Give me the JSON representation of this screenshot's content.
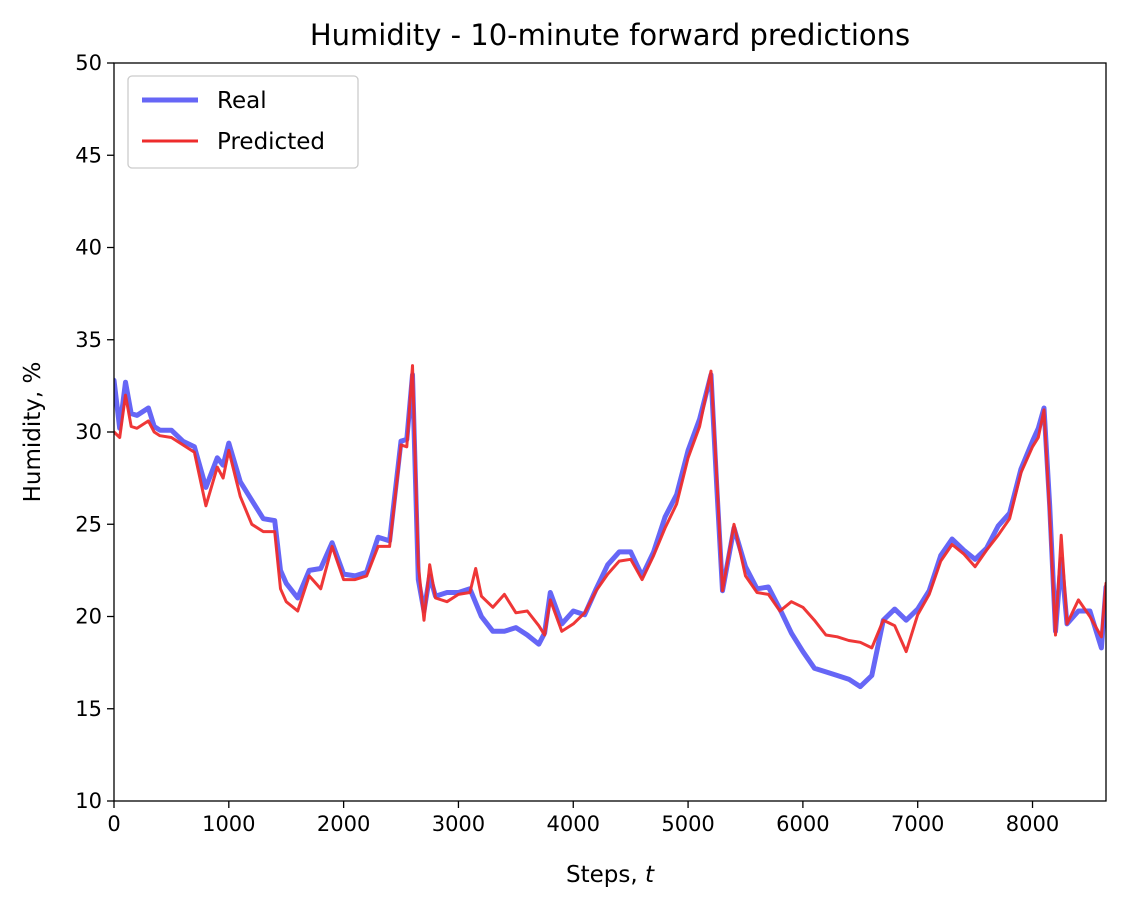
{
  "chart_data": {
    "type": "line",
    "title": "Humidity - 10-minute forward predictions",
    "xlabel": "Steps, ",
    "xlabel_var": "t",
    "ylabel": "Humidity, %",
    "xlim": [
      0,
      8640
    ],
    "ylim": [
      10,
      50
    ],
    "xticks": [
      0,
      1000,
      2000,
      3000,
      4000,
      5000,
      6000,
      7000,
      8000
    ],
    "yticks": [
      10,
      15,
      20,
      25,
      30,
      35,
      40,
      45,
      50
    ],
    "grid": false,
    "legend_position": "top-left",
    "series": [
      {
        "name": "Real",
        "color": "#6666f6",
        "x": [
          0,
          50,
          100,
          150,
          200,
          300,
          350,
          400,
          500,
          600,
          700,
          800,
          900,
          950,
          1000,
          1100,
          1200,
          1300,
          1400,
          1450,
          1500,
          1600,
          1700,
          1800,
          1900,
          2000,
          2100,
          2200,
          2300,
          2400,
          2500,
          2550,
          2600,
          2650,
          2700,
          2750,
          2800,
          2900,
          3000,
          3100,
          3200,
          3300,
          3400,
          3500,
          3600,
          3700,
          3750,
          3800,
          3900,
          4000,
          4100,
          4200,
          4300,
          4400,
          4500,
          4600,
          4700,
          4800,
          4900,
          5000,
          5100,
          5200,
          5250,
          5300,
          5400,
          5500,
          5600,
          5700,
          5800,
          5900,
          6000,
          6100,
          6200,
          6300,
          6400,
          6500,
          6600,
          6700,
          6800,
          6900,
          7000,
          7100,
          7200,
          7300,
          7400,
          7500,
          7600,
          7700,
          7800,
          7900,
          8000,
          8050,
          8100,
          8150,
          8200,
          8250,
          8300,
          8400,
          8500,
          8600,
          8640
        ],
        "values": [
          32.8,
          30.2,
          32.7,
          31.0,
          30.9,
          31.3,
          30.3,
          30.1,
          30.1,
          29.5,
          29.2,
          27.0,
          28.6,
          28.2,
          29.4,
          27.3,
          26.3,
          25.3,
          25.2,
          22.5,
          21.8,
          21.0,
          22.5,
          22.6,
          24.0,
          22.3,
          22.2,
          22.4,
          24.3,
          24.1,
          29.5,
          29.6,
          33.1,
          22.0,
          20.3,
          22.2,
          21.1,
          21.3,
          21.3,
          21.5,
          20.0,
          19.2,
          19.2,
          19.4,
          19.0,
          18.5,
          19.1,
          21.3,
          19.6,
          20.3,
          20.1,
          21.5,
          22.8,
          23.5,
          23.5,
          22.2,
          23.5,
          25.4,
          26.6,
          29.0,
          30.7,
          33.1,
          27.0,
          21.4,
          24.8,
          22.7,
          21.5,
          21.6,
          20.4,
          19.1,
          18.1,
          17.2,
          17.0,
          16.8,
          16.6,
          16.2,
          16.8,
          19.8,
          20.4,
          19.8,
          20.4,
          21.4,
          23.3,
          24.2,
          23.6,
          23.1,
          23.7,
          24.9,
          25.6,
          28.0,
          29.5,
          30.2,
          31.3,
          26.0,
          19.2,
          23.1,
          19.6,
          20.3,
          20.3,
          18.3,
          21.6
        ]
      },
      {
        "name": "Predicted",
        "color": "#ee2c2c",
        "x": [
          0,
          50,
          100,
          150,
          200,
          300,
          350,
          400,
          500,
          600,
          700,
          800,
          900,
          950,
          1000,
          1100,
          1200,
          1300,
          1400,
          1450,
          1500,
          1600,
          1700,
          1800,
          1900,
          2000,
          2100,
          2200,
          2300,
          2400,
          2500,
          2550,
          2600,
          2650,
          2700,
          2750,
          2800,
          2900,
          3000,
          3100,
          3150,
          3200,
          3300,
          3400,
          3500,
          3600,
          3700,
          3750,
          3800,
          3900,
          4000,
          4100,
          4200,
          4300,
          4400,
          4500,
          4600,
          4700,
          4800,
          4900,
          5000,
          5100,
          5200,
          5250,
          5300,
          5400,
          5500,
          5600,
          5700,
          5800,
          5900,
          6000,
          6100,
          6200,
          6300,
          6400,
          6500,
          6600,
          6700,
          6800,
          6900,
          7000,
          7100,
          7200,
          7300,
          7400,
          7500,
          7600,
          7700,
          7800,
          7900,
          8000,
          8050,
          8100,
          8150,
          8200,
          8250,
          8300,
          8400,
          8500,
          8600,
          8640
        ],
        "values": [
          30.0,
          29.7,
          32.0,
          30.3,
          30.2,
          30.6,
          30.0,
          29.8,
          29.7,
          29.3,
          28.9,
          26.0,
          28.1,
          27.5,
          29.0,
          26.5,
          25.0,
          24.6,
          24.6,
          21.5,
          20.8,
          20.3,
          22.2,
          21.5,
          23.8,
          22.0,
          22.0,
          22.2,
          23.8,
          23.8,
          29.3,
          29.2,
          33.6,
          22.8,
          19.8,
          22.8,
          21.0,
          20.8,
          21.2,
          21.3,
          22.6,
          21.1,
          20.5,
          21.2,
          20.2,
          20.3,
          19.5,
          19.0,
          20.9,
          19.2,
          19.6,
          20.2,
          21.4,
          22.3,
          23.0,
          23.1,
          22.0,
          23.3,
          24.8,
          26.1,
          28.6,
          30.3,
          33.3,
          27.5,
          21.4,
          25.0,
          22.2,
          21.3,
          21.2,
          20.3,
          20.8,
          20.5,
          19.8,
          19.0,
          18.9,
          18.7,
          18.6,
          18.3,
          19.8,
          19.5,
          18.1,
          20.1,
          21.2,
          23.0,
          23.9,
          23.4,
          22.7,
          23.6,
          24.4,
          25.3,
          27.8,
          29.2,
          29.7,
          31.2,
          25.5,
          19.0,
          24.4,
          19.6,
          20.9,
          20.0,
          18.9,
          21.8
        ]
      }
    ]
  }
}
